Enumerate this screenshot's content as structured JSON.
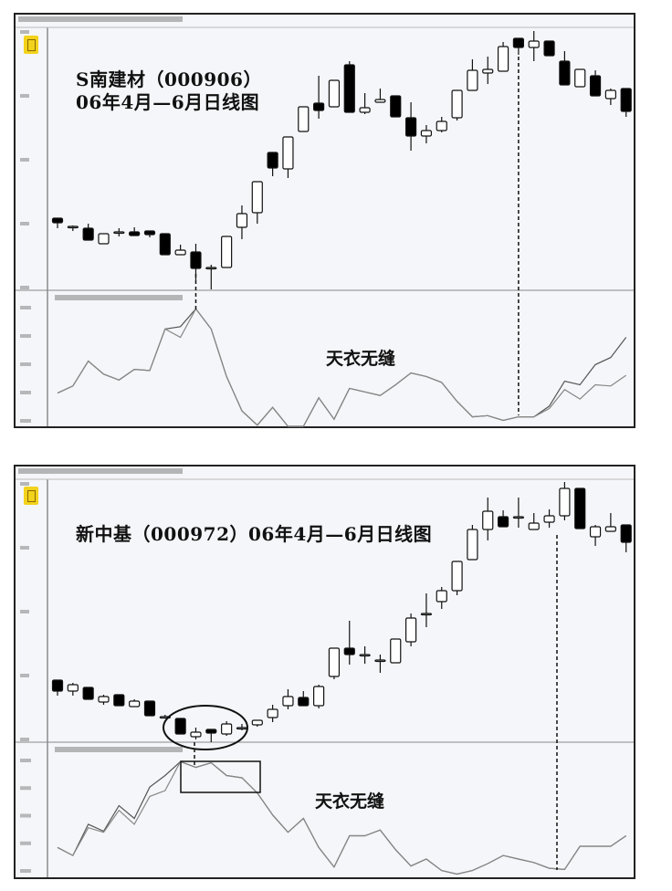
{
  "chart_data": [
    {
      "type": "candlestick",
      "title": "S南建材（000906）",
      "subtitle": "06年4月—6月日线图",
      "annotation": "天衣无缝",
      "colors": {
        "up": "#ffffff",
        "down": "#000000",
        "line_a": "#555555",
        "line_b": "#888888"
      },
      "candles_ohlc": [
        [
          7.9,
          7.9,
          6.8,
          7.4
        ],
        [
          7.0,
          7.1,
          6.5,
          7.0
        ],
        [
          6.8,
          7.3,
          5.5,
          5.5
        ],
        [
          5.1,
          6.2,
          5.1,
          6.2
        ],
        [
          6.4,
          6.8,
          5.9,
          6.4
        ],
        [
          6.4,
          6.9,
          6.0,
          6.0
        ],
        [
          6.5,
          6.5,
          5.8,
          6.1
        ],
        [
          6.2,
          6.2,
          3.9,
          3.9
        ],
        [
          3.9,
          5.0,
          3.9,
          4.4
        ],
        [
          4.2,
          5.1,
          1.1,
          2.4
        ],
        [
          2.5,
          2.8,
          0.1,
          2.5
        ],
        [
          2.5,
          5.9,
          2.5,
          5.9
        ],
        [
          6.9,
          9.3,
          5.6,
          8.4
        ],
        [
          8.5,
          11.9,
          7.3,
          11.9
        ],
        [
          15.1,
          15.1,
          12.5,
          13.4
        ],
        [
          13.3,
          16.8,
          12.3,
          16.8
        ],
        [
          17.4,
          20.1,
          17.4,
          20.1
        ],
        [
          20.5,
          23.5,
          18.8,
          19.7
        ],
        [
          20.1,
          23.0,
          20.1,
          23.0
        ],
        [
          24.7,
          25.1,
          19.5,
          19.5
        ],
        [
          19.5,
          21.6,
          19.3,
          20.0
        ],
        [
          20.6,
          22.1,
          20.6,
          20.9
        ],
        [
          21.3,
          21.3,
          19.0,
          19.0
        ],
        [
          18.9,
          20.6,
          15.3,
          16.9
        ],
        [
          16.9,
          18.1,
          16.1,
          17.5
        ],
        [
          17.5,
          19.0,
          17.3,
          18.5
        ],
        [
          18.9,
          21.9,
          18.6,
          21.9
        ],
        [
          21.9,
          25.3,
          21.9,
          24.1
        ],
        [
          23.8,
          25.6,
          22.6,
          24.2
        ],
        [
          24.0,
          27.2,
          24.0,
          26.7
        ],
        [
          27.6,
          27.6,
          25.8,
          26.6
        ],
        [
          26.6,
          28.4,
          25.1,
          27.3
        ],
        [
          27.3,
          27.3,
          25.7,
          25.7
        ],
        [
          25.1,
          26.2,
          22.5,
          22.5
        ],
        [
          22.3,
          24.2,
          22.3,
          24.2
        ],
        [
          23.5,
          24.1,
          21.3,
          21.3
        ],
        [
          21.0,
          22.1,
          20.3,
          21.9
        ],
        [
          22.1,
          22.1,
          19.0,
          19.6
        ]
      ],
      "price_ylim": [
        0,
        30
      ],
      "indicator_ylim": [
        0,
        100
      ],
      "indicator_series": [
        {
          "values": [
            28,
            34,
            55,
            44,
            39,
            48,
            47,
            82,
            84,
            99,
            82,
            42,
            13,
            1,
            16,
            0,
            0,
            24,
            6,
            32,
            29,
            26,
            35,
            45,
            42,
            37,
            21,
            8,
            9,
            5,
            8,
            8,
            17,
            38,
            35,
            52,
            58,
            75
          ]
        },
        {
          "values": [
            28,
            34,
            55,
            44,
            39,
            48,
            47,
            82,
            75,
            99,
            82,
            42,
            13,
            1,
            16,
            0,
            0,
            24,
            6,
            32,
            29,
            26,
            35,
            45,
            42,
            37,
            21,
            8,
            9,
            5,
            8,
            8,
            15,
            31,
            23,
            35,
            34,
            43
          ]
        }
      ],
      "marked_candles": [
        9,
        30
      ]
    },
    {
      "type": "candlestick",
      "title": "新中基（000972）06年4月—6月日线图",
      "annotation": "天衣无缝",
      "colors": {
        "up": "#ffffff",
        "down": "#000000",
        "line_a": "#555555",
        "line_b": "#888888"
      },
      "candles_ohlc": [
        [
          6.8,
          6.8,
          5.1,
          5.6
        ],
        [
          5.6,
          6.5,
          5.1,
          6.3
        ],
        [
          6.0,
          6.0,
          4.7,
          4.7
        ],
        [
          4.4,
          5.2,
          4.1,
          5.0
        ],
        [
          5.2,
          5.2,
          4.0,
          4.0
        ],
        [
          3.9,
          4.7,
          3.9,
          4.5
        ],
        [
          4.5,
          4.5,
          2.9,
          2.9
        ],
        [
          2.8,
          3.0,
          2.6,
          2.8
        ],
        [
          2.6,
          2.6,
          0.9,
          0.9
        ],
        [
          0.6,
          1.6,
          0.3,
          1.1
        ],
        [
          1.4,
          1.4,
          0.0,
          1.0
        ],
        [
          0.9,
          2.3,
          0.7,
          2.0
        ],
        [
          1.6,
          2.0,
          1.3,
          1.6
        ],
        [
          1.9,
          2.4,
          1.7,
          2.4
        ],
        [
          2.7,
          4.1,
          2.2,
          3.6
        ],
        [
          4.0,
          5.8,
          3.6,
          5.0
        ],
        [
          4.9,
          5.6,
          4.0,
          4.0
        ],
        [
          4.0,
          6.3,
          3.7,
          6.1
        ],
        [
          7.2,
          10.3,
          6.9,
          10.3
        ],
        [
          10.3,
          13.3,
          8.5,
          9.6
        ],
        [
          9.6,
          10.5,
          8.6,
          9.6
        ],
        [
          9.0,
          9.6,
          7.6,
          9.0
        ],
        [
          8.7,
          11.3,
          8.7,
          11.3
        ],
        [
          11.0,
          14.1,
          10.5,
          13.6
        ],
        [
          14.1,
          16.3,
          12.6,
          14.1
        ],
        [
          15.4,
          17.0,
          14.6,
          16.6
        ],
        [
          16.6,
          19.8,
          16.1,
          19.8
        ],
        [
          20.0,
          23.8,
          20.0,
          23.3
        ],
        [
          23.3,
          26.8,
          22.1,
          25.3
        ],
        [
          24.7,
          25.4,
          23.6,
          23.6
        ],
        [
          24.7,
          26.8,
          23.5,
          24.7
        ],
        [
          23.3,
          25.1,
          23.3,
          24.0
        ],
        [
          24.1,
          25.5,
          23.5,
          24.8
        ],
        [
          24.8,
          28.5,
          24.3,
          27.8
        ],
        [
          27.8,
          27.8,
          23.4,
          23.4
        ],
        [
          22.5,
          23.8,
          21.5,
          23.6
        ],
        [
          23.1,
          25.1,
          23.1,
          23.6
        ],
        [
          23.8,
          23.8,
          20.8,
          21.9
        ]
      ],
      "price_ylim": [
        0,
        30
      ],
      "indicator_ylim": [
        0,
        100
      ],
      "indicator_series": [
        {
          "values": [
            25,
            18,
            45,
            39,
            61,
            50,
            77,
            87,
            99,
            94,
            98,
            87,
            85,
            72,
            53,
            38,
            50,
            25,
            8,
            35,
            35,
            40,
            23,
            9,
            15,
            5,
            2,
            5,
            11,
            18,
            15,
            12,
            7,
            6,
            26,
            26,
            26,
            35
          ]
        },
        {
          "values": [
            25,
            18,
            42,
            38,
            57,
            45,
            69,
            74,
            99,
            94,
            98,
            87,
            85,
            72,
            53,
            38,
            50,
            25,
            8,
            35,
            35,
            40,
            23,
            9,
            15,
            5,
            2,
            5,
            11,
            18,
            15,
            12,
            7,
            6,
            26,
            26,
            26,
            35
          ]
        }
      ],
      "marked_candles": [
        9,
        33
      ]
    }
  ]
}
